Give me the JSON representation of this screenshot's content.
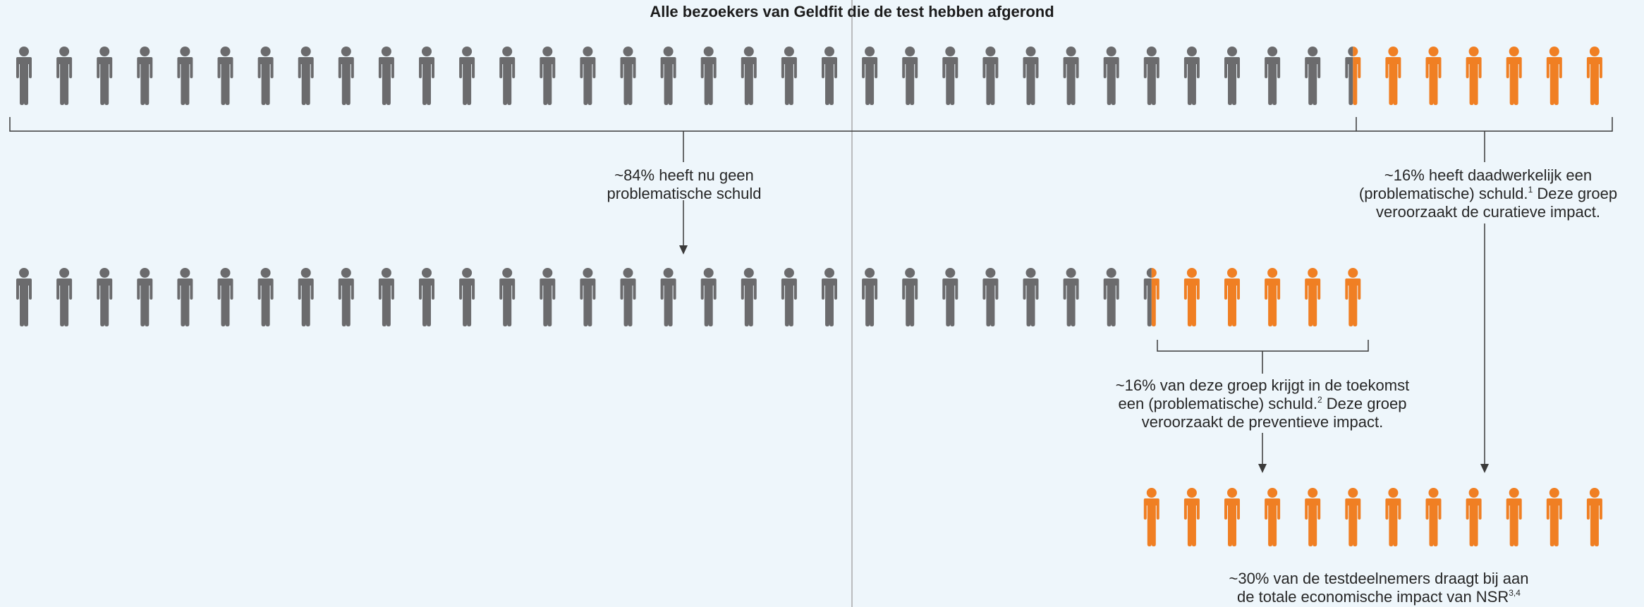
{
  "title": "Alle bezoekers van Geldfit die de test hebben afgerond",
  "labels": {
    "no_debt_line1": "~84% heeft nu geen",
    "no_debt_line2": "problematische schuld",
    "actual_line1": "~16% heeft daadwerkelijk een",
    "actual_line2": "(problematische) schuld.",
    "actual_sup": "1",
    "actual_line2b": " Deze groep",
    "actual_line3": "veroorzaakt de curatieve impact.",
    "future_line1": "~16% van deze groep krijgt in de toekomst",
    "future_line2": "een (problematische) schuld.",
    "future_sup": "2",
    "future_line2b": " Deze groep",
    "future_line3": "veroorzaakt de preventieve impact.",
    "total_line1": "~30% van de testdeelnemers draagt bij aan",
    "total_line2": "de totale economische impact van NSR",
    "total_sup": "3,4"
  },
  "groups": {
    "all_visitors": {
      "total_icons": 40,
      "grey_icons": 33.5,
      "orange_icons": 6.5
    },
    "no_debt_now": {
      "total_icons": 34,
      "grey_icons": 28.5,
      "orange_icons": 5.5
    },
    "total_impact": {
      "total_icons": 12,
      "orange_icons": 12
    }
  },
  "colors": {
    "background": "#eef6fb",
    "grey": "#6b6b6d",
    "orange": "#f07f23",
    "line": "#3a3a3a",
    "divider": "#a9a9a9"
  },
  "icons": {
    "person": "person-icon"
  }
}
